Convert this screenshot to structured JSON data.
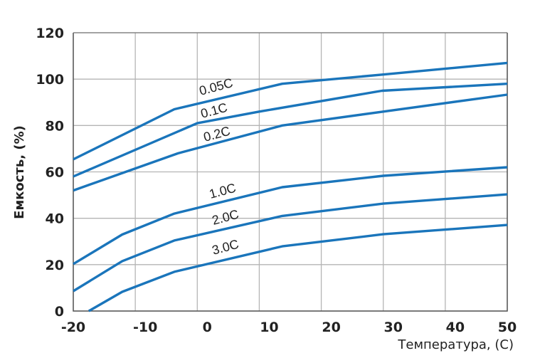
{
  "chart_data": {
    "type": "line",
    "title": "",
    "xlabel": "Температура, (С)",
    "ylabel": "Емкость, (%)",
    "xlim": [
      -20,
      50
    ],
    "ylim": [
      0,
      120
    ],
    "xticks": [
      "-20",
      "-10",
      "0",
      "10",
      "20",
      "30",
      "40",
      "50"
    ],
    "yticks": [
      "0",
      "20",
      "40",
      "60",
      "80",
      "100",
      "120"
    ],
    "grid": true,
    "line_color": "#1a75bb",
    "series": [
      {
        "name": "0.05C",
        "points": [
          [
            -20,
            65.4
          ],
          [
            -3.7,
            87
          ],
          [
            13.7,
            98
          ],
          [
            30,
            102
          ],
          [
            50,
            107
          ]
        ]
      },
      {
        "name": "0.1C",
        "points": [
          [
            -20,
            58
          ],
          [
            0,
            81
          ],
          [
            10,
            86
          ],
          [
            29.8,
            95
          ],
          [
            50,
            98
          ]
        ]
      },
      {
        "name": "0.2C",
        "points": [
          [
            -20,
            52
          ],
          [
            -3.1,
            68
          ],
          [
            13.7,
            80
          ],
          [
            30,
            86
          ],
          [
            50,
            93.3
          ]
        ]
      },
      {
        "name": "1.0C",
        "points": [
          [
            -20,
            20.3
          ],
          [
            -12.1,
            33
          ],
          [
            -3.7,
            42
          ],
          [
            13.7,
            53.4
          ],
          [
            30,
            58.3
          ],
          [
            50,
            62
          ]
        ]
      },
      {
        "name": "2.0C",
        "points": [
          [
            -20,
            8.6
          ],
          [
            -12.1,
            21.5
          ],
          [
            -3.7,
            30.4
          ],
          [
            13.7,
            41
          ],
          [
            30,
            46.3
          ],
          [
            50,
            50.3
          ]
        ]
      },
      {
        "name": "3.0C",
        "points": [
          [
            -17.5,
            0
          ],
          [
            -12.1,
            8.3
          ],
          [
            -3.7,
            16.9
          ],
          [
            13.7,
            27.9
          ],
          [
            30,
            33.1
          ],
          [
            50,
            37.1
          ]
        ]
      }
    ]
  }
}
